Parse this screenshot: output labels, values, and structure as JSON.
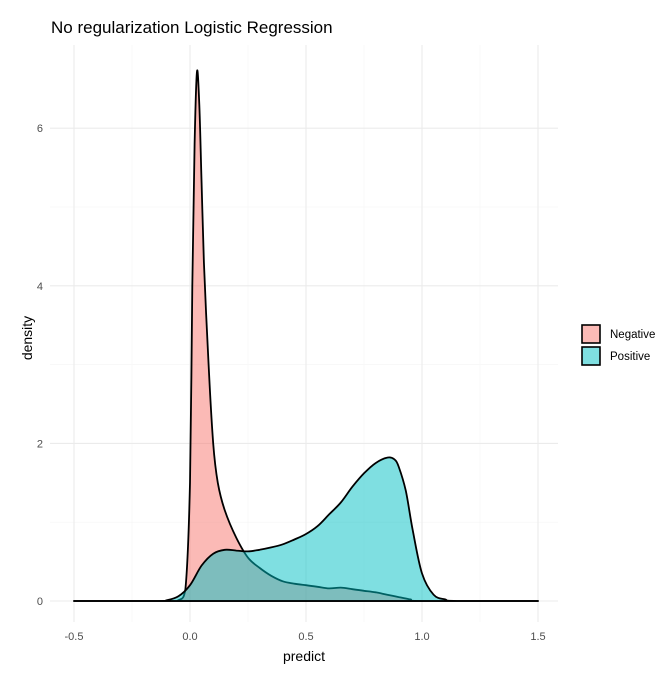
{
  "chart_data": {
    "type": "area",
    "title": "No regularization Logistic Regression",
    "xlabel": "predict",
    "ylabel": "density",
    "xlim": [
      -0.5,
      1.5
    ],
    "ylim": [
      0,
      7
    ],
    "x_ticks": [
      -0.5,
      0.0,
      0.5,
      1.0,
      1.5
    ],
    "x_tick_labels": [
      "-0.5",
      "0.0",
      "0.5",
      "1.0",
      "1.5"
    ],
    "y_ticks": [
      0,
      2,
      4,
      6
    ],
    "y_tick_labels": [
      "0",
      "2",
      "4",
      "6"
    ],
    "grid": true,
    "legend_position": "right",
    "series": [
      {
        "name": "Negative",
        "color": "#F8766D",
        "fill_opacity": 0.5,
        "x": [
          -0.5,
          -0.1,
          -0.05,
          -0.02,
          0.0,
          0.01,
          0.02,
          0.03,
          0.04,
          0.05,
          0.06,
          0.08,
          0.1,
          0.12,
          0.15,
          0.2,
          0.25,
          0.3,
          0.35,
          0.4,
          0.45,
          0.5,
          0.55,
          0.6,
          0.65,
          0.7,
          0.75,
          0.8,
          0.85,
          0.9,
          0.95,
          1.0,
          1.5
        ],
        "y": [
          0,
          0,
          0.01,
          0.15,
          1.5,
          4.0,
          5.8,
          6.72,
          6.3,
          5.3,
          4.3,
          3.0,
          2.0,
          1.5,
          1.15,
          0.8,
          0.55,
          0.42,
          0.32,
          0.25,
          0.22,
          0.2,
          0.18,
          0.16,
          0.17,
          0.15,
          0.13,
          0.11,
          0.08,
          0.05,
          0.02,
          0.0,
          0
        ]
      },
      {
        "name": "Positive",
        "color": "#00BFC4",
        "fill_opacity": 0.5,
        "x": [
          -0.5,
          -0.15,
          -0.1,
          -0.05,
          0.0,
          0.05,
          0.1,
          0.15,
          0.2,
          0.25,
          0.3,
          0.35,
          0.4,
          0.45,
          0.5,
          0.55,
          0.6,
          0.65,
          0.7,
          0.75,
          0.8,
          0.85,
          0.88,
          0.9,
          0.93,
          0.96,
          1.0,
          1.05,
          1.1,
          1.15,
          1.5
        ],
        "y": [
          0,
          0,
          0.01,
          0.06,
          0.2,
          0.45,
          0.6,
          0.65,
          0.64,
          0.63,
          0.65,
          0.68,
          0.72,
          0.78,
          0.85,
          0.95,
          1.1,
          1.25,
          1.45,
          1.62,
          1.75,
          1.82,
          1.8,
          1.7,
          1.4,
          0.9,
          0.35,
          0.08,
          0.02,
          0.0,
          0
        ]
      }
    ]
  }
}
